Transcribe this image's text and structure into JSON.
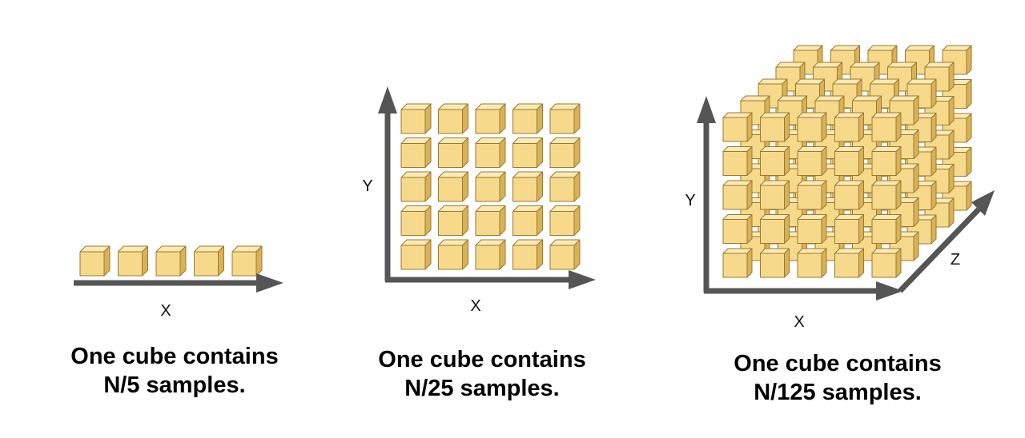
{
  "panels": [
    {
      "id": "1d",
      "axis_labels": {
        "x": "X"
      },
      "grid": {
        "cols": 5,
        "rows": 1,
        "depth": 1
      },
      "caption": [
        "One cube contains",
        "N/5 samples."
      ]
    },
    {
      "id": "2d",
      "axis_labels": {
        "x": "X",
        "y": "Y"
      },
      "grid": {
        "cols": 5,
        "rows": 5,
        "depth": 1
      },
      "caption": [
        "One cube contains",
        "N/25 samples."
      ]
    },
    {
      "id": "3d",
      "axis_labels": {
        "x": "X",
        "y": "Y",
        "z": "Z"
      },
      "grid": {
        "cols": 5,
        "rows": 5,
        "depth": 5
      },
      "caption": [
        "One cube contains",
        "N/125 samples."
      ]
    }
  ],
  "colors": {
    "axis": "#555555",
    "cube_front": "#f7d98c",
    "cube_top": "#fbe9b6",
    "cube_side": "#d9b258",
    "cube_edge": "#9a7a2e"
  },
  "icons": {
    "cube": "cube-icon",
    "arrow": "arrow-icon"
  }
}
